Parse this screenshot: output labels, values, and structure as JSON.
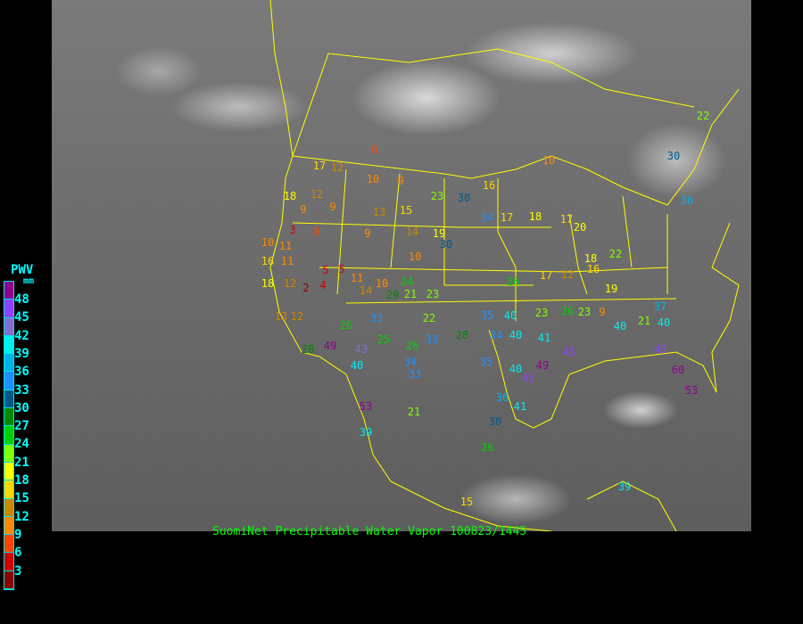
{
  "caption": "SuomiNet Precipitable Water Vapor 100823/1445",
  "legend": {
    "title": "PWV",
    "unit": "mm",
    "labels": [
      "48",
      "45",
      "42",
      "39",
      "36",
      "33",
      "30",
      "27",
      "24",
      "21",
      "18",
      "15",
      "12",
      "9",
      "6",
      "3"
    ],
    "colors": [
      "#900090",
      "#9040ff",
      "#8070d0",
      "#00eeee",
      "#00b4e8",
      "#1e90ff",
      "#005a8c",
      "#008800",
      "#00d000",
      "#80ff00",
      "#ffff00",
      "#ffd700",
      "#cc8800",
      "#ff8800",
      "#ff4400",
      "#d00000",
      "#8b0000"
    ]
  },
  "stations": [
    6,
    17,
    12,
    10,
    9,
    18,
    12,
    9,
    9,
    13,
    15,
    23,
    30,
    16,
    34,
    17,
    18,
    17,
    3,
    8,
    10,
    11,
    9,
    14,
    19,
    30,
    10,
    16,
    11,
    5,
    5,
    11,
    10,
    24,
    18,
    12,
    2,
    4,
    14,
    29,
    21,
    23,
    26,
    17,
    12,
    16,
    19,
    13,
    12,
    26,
    33,
    22,
    35,
    40,
    23,
    26,
    9,
    21,
    40,
    43,
    25,
    26,
    33,
    28,
    34,
    40,
    41,
    40,
    34,
    35,
    40,
    45,
    49,
    45,
    33,
    21,
    36,
    41,
    30,
    26,
    39,
    15,
    10,
    20,
    18,
    22,
    45,
    60,
    53,
    22,
    30,
    36,
    40,
    37,
    23,
    39,
    53,
    28,
    49
  ],
  "map_line_color": "#ffff00"
}
